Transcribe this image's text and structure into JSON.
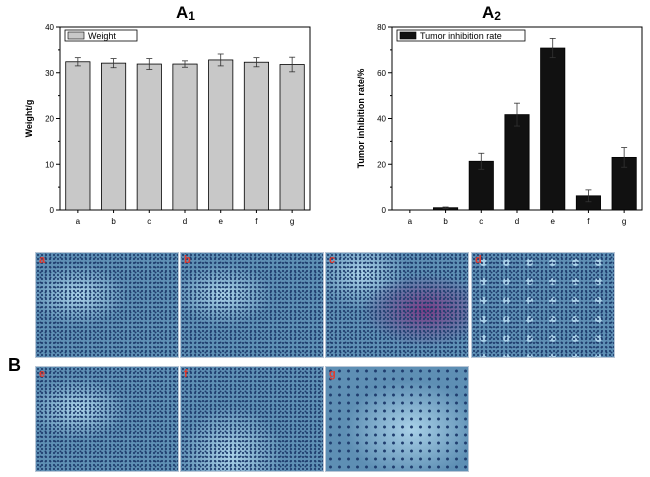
{
  "colors": {
    "weight_bar": "#c8c8c8",
    "inhibition_bar": "#111111",
    "axis": "#000000",
    "micro_base": "#5e8fb4",
    "micro_dark": "#1f3d6e",
    "micro_light": "#a9d1e8",
    "micro_purple": "#7a3d86",
    "tag": "#e23a2e"
  },
  "panel_labels": {
    "a1_main": "A",
    "a1_sub": "1",
    "a2_main": "A",
    "a2_sub": "2",
    "b": "B"
  },
  "chart_data": [
    {
      "type": "bar",
      "categories": [
        "a",
        "b",
        "c",
        "d",
        "e",
        "f",
        "g"
      ],
      "series": [
        {
          "name": "Weight",
          "values": [
            32.4,
            32.1,
            31.9,
            31.9,
            32.8,
            32.3,
            31.8
          ],
          "errors": [
            0.9,
            1.0,
            1.2,
            0.7,
            1.3,
            1.0,
            1.6
          ]
        }
      ],
      "title": "A1",
      "xlabel": "",
      "ylabel": "Weight/g",
      "ylim": [
        0,
        40
      ],
      "yticks": [
        0,
        10,
        20,
        30,
        40
      ],
      "grid": false,
      "legend": "top-left"
    },
    {
      "type": "bar",
      "categories": [
        "a",
        "b",
        "c",
        "d",
        "e",
        "f",
        "g"
      ],
      "series": [
        {
          "name": "Tumor inhibition rate",
          "values": [
            0,
            1.0,
            21.3,
            41.7,
            70.8,
            6.2,
            23.0
          ],
          "errors": [
            0,
            0.3,
            3.5,
            5.0,
            4.2,
            2.6,
            4.3
          ]
        }
      ],
      "title": "A2",
      "xlabel": "",
      "ylabel": "Tumor inhibition rate/%",
      "ylim": [
        0,
        80
      ],
      "yticks": [
        0,
        20,
        40,
        60,
        80
      ],
      "grid": false,
      "legend": "top-left"
    }
  ],
  "micrographs": [
    {
      "label": "a",
      "tone": "dense"
    },
    {
      "label": "b",
      "tone": "dense"
    },
    {
      "label": "c",
      "tone": "purple"
    },
    {
      "label": "d",
      "tone": "vacuolated"
    },
    {
      "label": "e",
      "tone": "dense"
    },
    {
      "label": "f",
      "tone": "light"
    },
    {
      "label": "g",
      "tone": "necrotic"
    }
  ]
}
